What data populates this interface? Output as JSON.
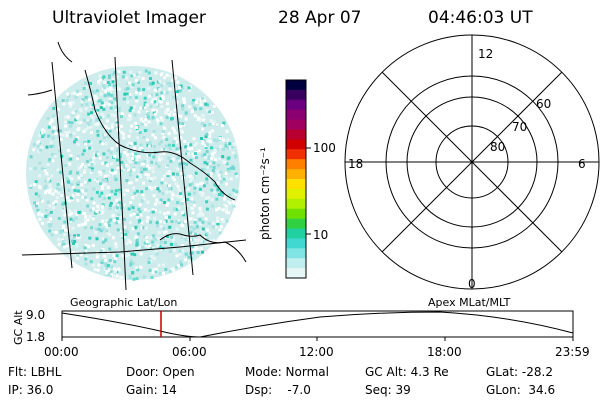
{
  "header": {
    "instrument": "Ultraviolet Imager",
    "date": "28 Apr 07",
    "time": "04:46:03 UT"
  },
  "colorbar": {
    "unit": "photon cm⁻²s⁻¹",
    "ticks": [
      "100",
      "10"
    ],
    "colors": [
      "#000040",
      "#3a0060",
      "#6a0080",
      "#8a0070",
      "#a00060",
      "#b80030",
      "#d00000",
      "#f03000",
      "#ff8000",
      "#ffb000",
      "#ffe000",
      "#e0f000",
      "#b0f000",
      "#70e000",
      "#30d040",
      "#20d0a0",
      "#40d8d0",
      "#80e4e4",
      "#c0eeee",
      "#e6f6f6"
    ]
  },
  "polar": {
    "labels": {
      "top": "12",
      "left": "18",
      "right": "6",
      "bottom": "0"
    },
    "rings": [
      "60",
      "70",
      "80"
    ]
  },
  "panels": {
    "geo_label": "Geographic Lat/Lon",
    "apex_label": "Apex MLat/MLT"
  },
  "altitude": {
    "axis_label": "GC Alt",
    "y_ticks": [
      "9.0",
      "1.8"
    ],
    "x_ticks": [
      "00:00",
      "06:00",
      "12:00",
      "18:00",
      "23:59"
    ],
    "marker_time": "04:46",
    "marker_color": "#c00000"
  },
  "info": {
    "row1": [
      "Flt: LBHL",
      "Door: Open",
      "Mode: Normal",
      "GC Alt: 4.3 Re",
      "GLat: -28.2"
    ],
    "row2": [
      "IP: 36.0",
      "Gain: 14",
      "Dsp:    -7.0",
      "Seq: 39",
      "GLon:  34.6"
    ]
  }
}
